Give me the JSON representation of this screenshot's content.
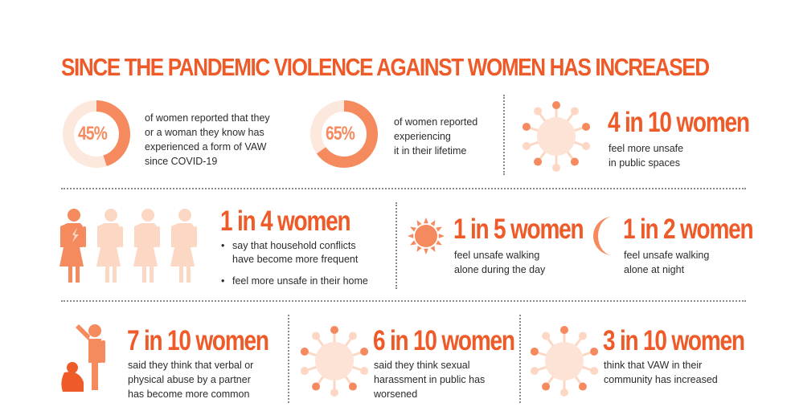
{
  "title": "SINCE THE PANDEMIC VIOLENCE AGAINST WOMEN HAS INCREASED",
  "colors": {
    "accent": "#ee5a28",
    "light": "#fcd7c4",
    "medium": "#f58a5e",
    "pale": "#fde8de",
    "text": "#2b2b2b"
  },
  "stats": {
    "s1": {
      "value": "45%",
      "percent": 45,
      "lines": [
        "of women reported that they",
        "or a woman they know has",
        "experienced a form of VAW",
        "since COVID-19"
      ]
    },
    "s2": {
      "value": "65%",
      "percent": 65,
      "lines": [
        "of women reported",
        "experiencing",
        "it in their lifetime"
      ]
    },
    "s3": {
      "headline": "4 in 10 women",
      "icon": "virus-icon",
      "lines": [
        "feel more unsafe",
        "in public spaces"
      ]
    },
    "s4": {
      "headline": "1 in 4 women",
      "icon": "women-figures-icon",
      "bullets": [
        "say that household conflicts\nhave become more frequent",
        "feel more unsafe in their home"
      ]
    },
    "s5": {
      "headline": "1 in 5 women",
      "icon": "sun-icon",
      "lines": [
        "feel unsafe walking",
        "alone during the day"
      ]
    },
    "s6": {
      "headline": "1 in 2 women",
      "icon": "moon-icon",
      "lines": [
        "feel unsafe walking",
        "alone at night"
      ]
    },
    "s7": {
      "headline": "7 in 10 women",
      "icon": "abuse-figures-icon",
      "lines": [
        "said they think that verbal or",
        "physical abuse by a partner",
        "has become more common"
      ]
    },
    "s8": {
      "headline": "6 in 10 women",
      "icon": "virus-icon",
      "lines": [
        "said they think sexual",
        "harassment in public has",
        "worsened"
      ]
    },
    "s9": {
      "headline": "3 in 10 women",
      "icon": "virus-icon",
      "lines": [
        "think that VAW in their",
        "community has increased"
      ]
    }
  }
}
